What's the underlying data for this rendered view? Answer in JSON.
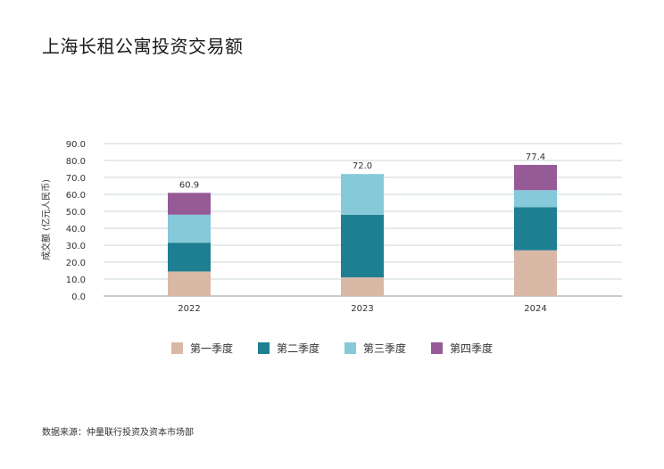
{
  "title": "上海长租公寓投资交易额",
  "source": "数据来源：仲量联行投资及资本市场部",
  "chart_data": {
    "type": "bar",
    "stacked": true,
    "categories": [
      "2022",
      "2023",
      "2024"
    ],
    "series": [
      {
        "name": "第一季度",
        "color": "#d9b8a6",
        "values": [
          14.5,
          11.0,
          27.0
        ]
      },
      {
        "name": "第二季度",
        "color": "#1f7f92",
        "values": [
          17.0,
          37.0,
          25.5
        ]
      },
      {
        "name": "第三季度",
        "color": "#86c9d8",
        "values": [
          16.5,
          24.0,
          10.0
        ]
      },
      {
        "name": "第四季度",
        "color": "#965a97",
        "values": [
          12.9,
          0.0,
          14.9
        ]
      }
    ],
    "totals": [
      "60.9",
      "72.0",
      "77.4"
    ],
    "ylabel": "成交额 (亿元人民币)",
    "ylim": [
      0,
      90
    ],
    "yticks": [
      "0.0",
      "10.0",
      "20.0",
      "30.0",
      "40.0",
      "50.0",
      "60.0",
      "70.0",
      "80.0",
      "90.0"
    ],
    "grid": true,
    "legend_position": "bottom"
  }
}
